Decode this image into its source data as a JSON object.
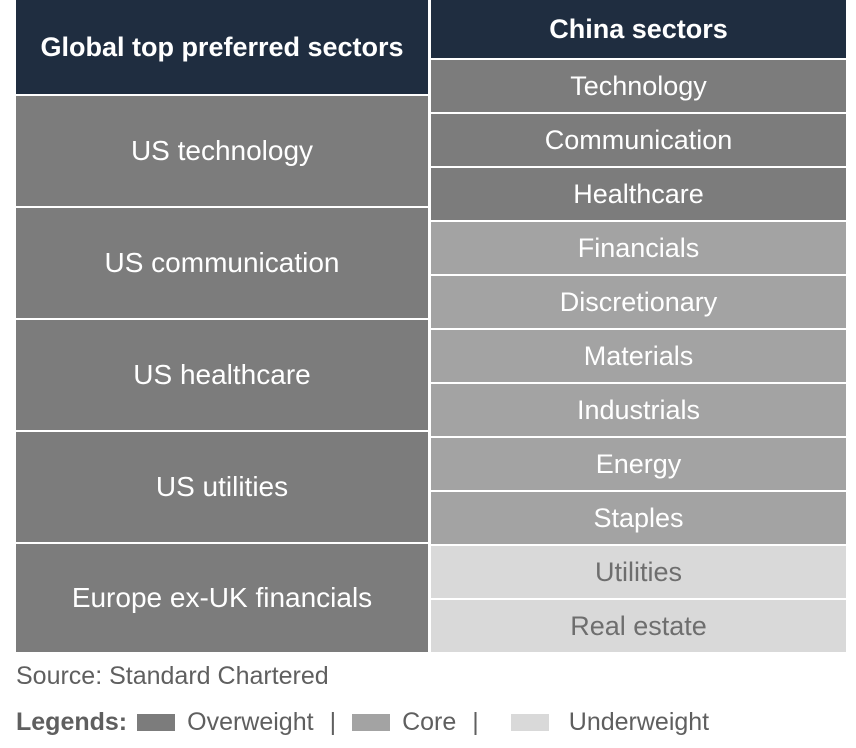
{
  "left": {
    "header": "Global top preferred sectors",
    "rows": [
      {
        "label": "US technology",
        "rating": "overweight"
      },
      {
        "label": "US communication",
        "rating": "overweight"
      },
      {
        "label": "US healthcare",
        "rating": "overweight"
      },
      {
        "label": "US utilities",
        "rating": "overweight"
      },
      {
        "label": "Europe ex-UK financials",
        "rating": "overweight"
      }
    ]
  },
  "right": {
    "header": "China sectors",
    "rows": [
      {
        "label": "Technology",
        "rating": "overweight"
      },
      {
        "label": "Communication",
        "rating": "overweight"
      },
      {
        "label": "Healthcare",
        "rating": "overweight"
      },
      {
        "label": "Financials",
        "rating": "core"
      },
      {
        "label": "Discretionary",
        "rating": "core"
      },
      {
        "label": "Materials",
        "rating": "core"
      },
      {
        "label": "Industrials",
        "rating": "core"
      },
      {
        "label": "Energy",
        "rating": "core"
      },
      {
        "label": "Staples",
        "rating": "core"
      },
      {
        "label": "Utilities",
        "rating": "underweight"
      },
      {
        "label": "Real estate",
        "rating": "underweight"
      }
    ]
  },
  "source": "Source: Standard Chartered",
  "legend": {
    "label": "Legends:",
    "overweight": "Overweight",
    "core": "Core",
    "underweight": "Underweight",
    "separator": "|"
  },
  "colors": {
    "header_bg": "#1f2d40",
    "overweight": "#7c7c7c",
    "core": "#a3a3a3",
    "underweight": "#d9d9d9"
  }
}
